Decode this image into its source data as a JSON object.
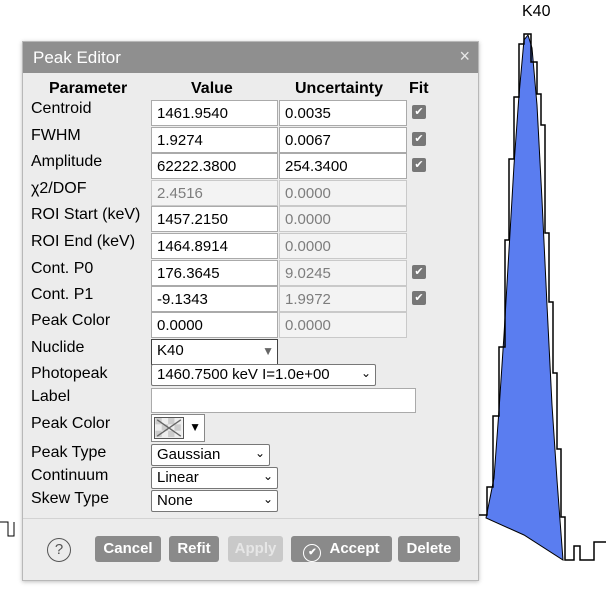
{
  "plot": {
    "peak_label": "K40",
    "fill_color": "#5a7df0"
  },
  "dialog": {
    "title": "Peak Editor",
    "close_glyph": "×",
    "headers": {
      "parameter": "Parameter",
      "value": "Value",
      "uncertainty": "Uncertainty",
      "fit": "Fit"
    },
    "rows": {
      "centroid": {
        "label": "Centroid",
        "value": "1461.9540",
        "uncertainty": "0.0035",
        "fit": true
      },
      "fwhm": {
        "label": "FWHM",
        "value": "1.9274",
        "uncertainty": "0.0067",
        "fit": true
      },
      "amplitude": {
        "label": "Amplitude",
        "value": "62222.3800",
        "uncertainty": "254.3400",
        "fit": true
      },
      "chi2": {
        "label": "χ2/DOF",
        "value": "2.4516",
        "uncertainty": "0.0000"
      },
      "roi_start": {
        "label": "ROI Start (keV)",
        "value": "1457.2150",
        "uncertainty": "0.0000"
      },
      "roi_end": {
        "label": "ROI End (keV)",
        "value": "1464.8914",
        "uncertainty": "0.0000"
      },
      "cont_p0": {
        "label": "Cont. P0",
        "value": "176.3645",
        "uncertainty": "9.0245",
        "fit": true
      },
      "cont_p1": {
        "label": "Cont. P1",
        "value": "-9.1343",
        "uncertainty": "1.9972",
        "fit": true
      },
      "peak_color_num": {
        "label": "Peak Color",
        "value": "0.0000",
        "uncertainty": "0.0000"
      }
    },
    "nuclide": {
      "label": "Nuclide",
      "value": "K40"
    },
    "photopeak": {
      "label": "Photopeak",
      "value": "1460.7500 keV I=1.0e+00"
    },
    "label_field": {
      "label": "Label",
      "value": ""
    },
    "peak_color": {
      "label": "Peak Color"
    },
    "peak_type": {
      "label": "Peak Type",
      "value": "Gaussian"
    },
    "continuum": {
      "label": "Continuum",
      "value": "Linear"
    },
    "skew_type": {
      "label": "Skew Type",
      "value": "None"
    },
    "buttons": {
      "help": "?",
      "cancel": "Cancel",
      "refit": "Refit",
      "apply": "Apply",
      "accept": "Accept",
      "delete": "Delete"
    }
  }
}
